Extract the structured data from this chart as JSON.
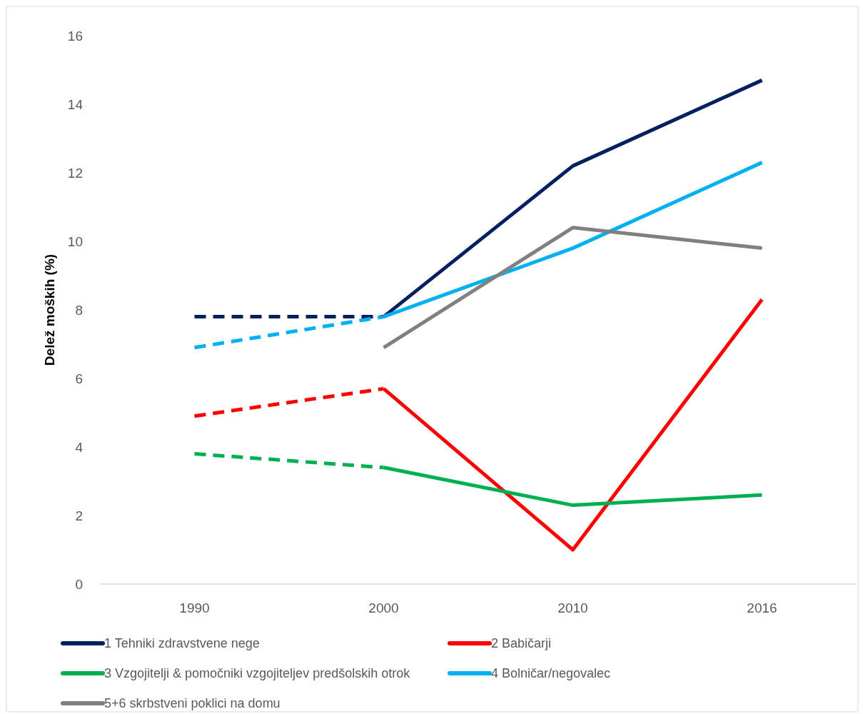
{
  "chart_data": {
    "type": "line",
    "ylabel": "Delež moških (%)",
    "categories": [
      "1990",
      "2000",
      "2010",
      "2016"
    ],
    "series": [
      {
        "name": "1 Tehniki zdravstvene nege",
        "color": "#002060",
        "line_style": "solid",
        "values": [
          null,
          7.8,
          12.2,
          14.7
        ]
      },
      {
        "name": "2 Babičarji",
        "color": "#ff0000",
        "line_style": "solid",
        "values": [
          null,
          5.7,
          1.0,
          8.3
        ]
      },
      {
        "name": "3 Vzgojitelji & pomočniki vzgojiteljev predšolskih otrok",
        "color": "#00b050",
        "line_style": "solid",
        "values": [
          null,
          3.4,
          2.3,
          2.6
        ]
      },
      {
        "name": "4 Bolničar/negovalec",
        "color": "#00b0f0",
        "line_style": "solid",
        "values": [
          null,
          7.8,
          9.8,
          12.3
        ]
      },
      {
        "name": "5+6 skrbstveni poklici na domu",
        "color": "#808080",
        "line_style": "solid",
        "values": [
          null,
          6.9,
          10.4,
          9.8
        ]
      },
      {
        "color": "#002060",
        "line_style": "dashed",
        "values": [
          7.8,
          7.8,
          null,
          null
        ]
      },
      {
        "color": "#ff0000",
        "line_style": "dashed",
        "values": [
          4.9,
          5.7,
          null,
          null
        ]
      },
      {
        "color": "#00b050",
        "line_style": "dashed",
        "values": [
          3.8,
          3.4,
          null,
          null
        ]
      },
      {
        "color": "#00b0f0",
        "line_style": "dashed",
        "values": [
          6.9,
          7.8,
          null,
          null
        ]
      }
    ],
    "ylim": [
      0,
      16
    ],
    "yticks": [
      0,
      2,
      4,
      6,
      8,
      10,
      12,
      14,
      16
    ],
    "grid": false,
    "legend": "bottom",
    "marker": "none"
  }
}
